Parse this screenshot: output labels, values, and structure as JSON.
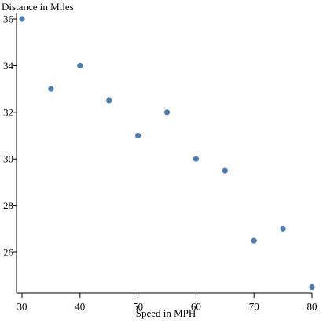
{
  "chart_data": {
    "type": "scatter",
    "xlabel": "Speed in MPH",
    "ylabel": "Distance in Miles",
    "x_ticks": [
      30,
      40,
      50,
      60,
      70,
      80
    ],
    "y_ticks": [
      26,
      28,
      30,
      32,
      34,
      36
    ],
    "xlim": [
      29.5,
      80
    ],
    "ylim": [
      24.5,
      36.1
    ],
    "grid": false,
    "marker_color": "#4a7ebb",
    "points": [
      {
        "x": 30,
        "y": 36
      },
      {
        "x": 35,
        "y": 33
      },
      {
        "x": 40,
        "y": 34
      },
      {
        "x": 45,
        "y": 32.5
      },
      {
        "x": 50,
        "y": 31
      },
      {
        "x": 55,
        "y": 32
      },
      {
        "x": 60,
        "y": 30
      },
      {
        "x": 65,
        "y": 29.5
      },
      {
        "x": 70,
        "y": 26.5
      },
      {
        "x": 75,
        "y": 27
      },
      {
        "x": 80,
        "y": 24.5
      }
    ]
  }
}
